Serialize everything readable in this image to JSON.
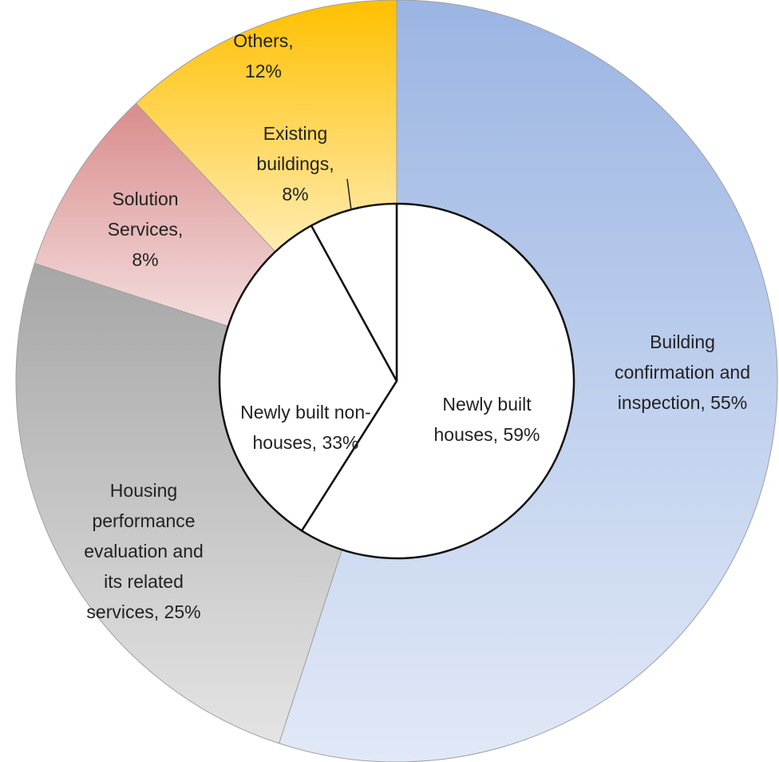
{
  "chart_data": [
    {
      "type": "donut",
      "labels": [
        "Building confirmation and inspection, 55%",
        "Housing performance evaluation and its related services, 25%",
        "Solution Services, 8%",
        "Others, 12%"
      ],
      "values": [
        55,
        25,
        8,
        12
      ],
      "colors": [
        "#9bb5e3",
        "#a6a6a6",
        "#d98c8c",
        "#ffc000"
      ]
    },
    {
      "type": "pie",
      "labels": [
        "Newly built houses, 59%",
        "Newly built non-houses, 33%",
        "Existing buildings, 8%"
      ],
      "values": [
        59,
        33,
        8
      ],
      "colors": [
        "#ffffff",
        "#ffffff",
        "#ffffff"
      ]
    }
  ]
}
